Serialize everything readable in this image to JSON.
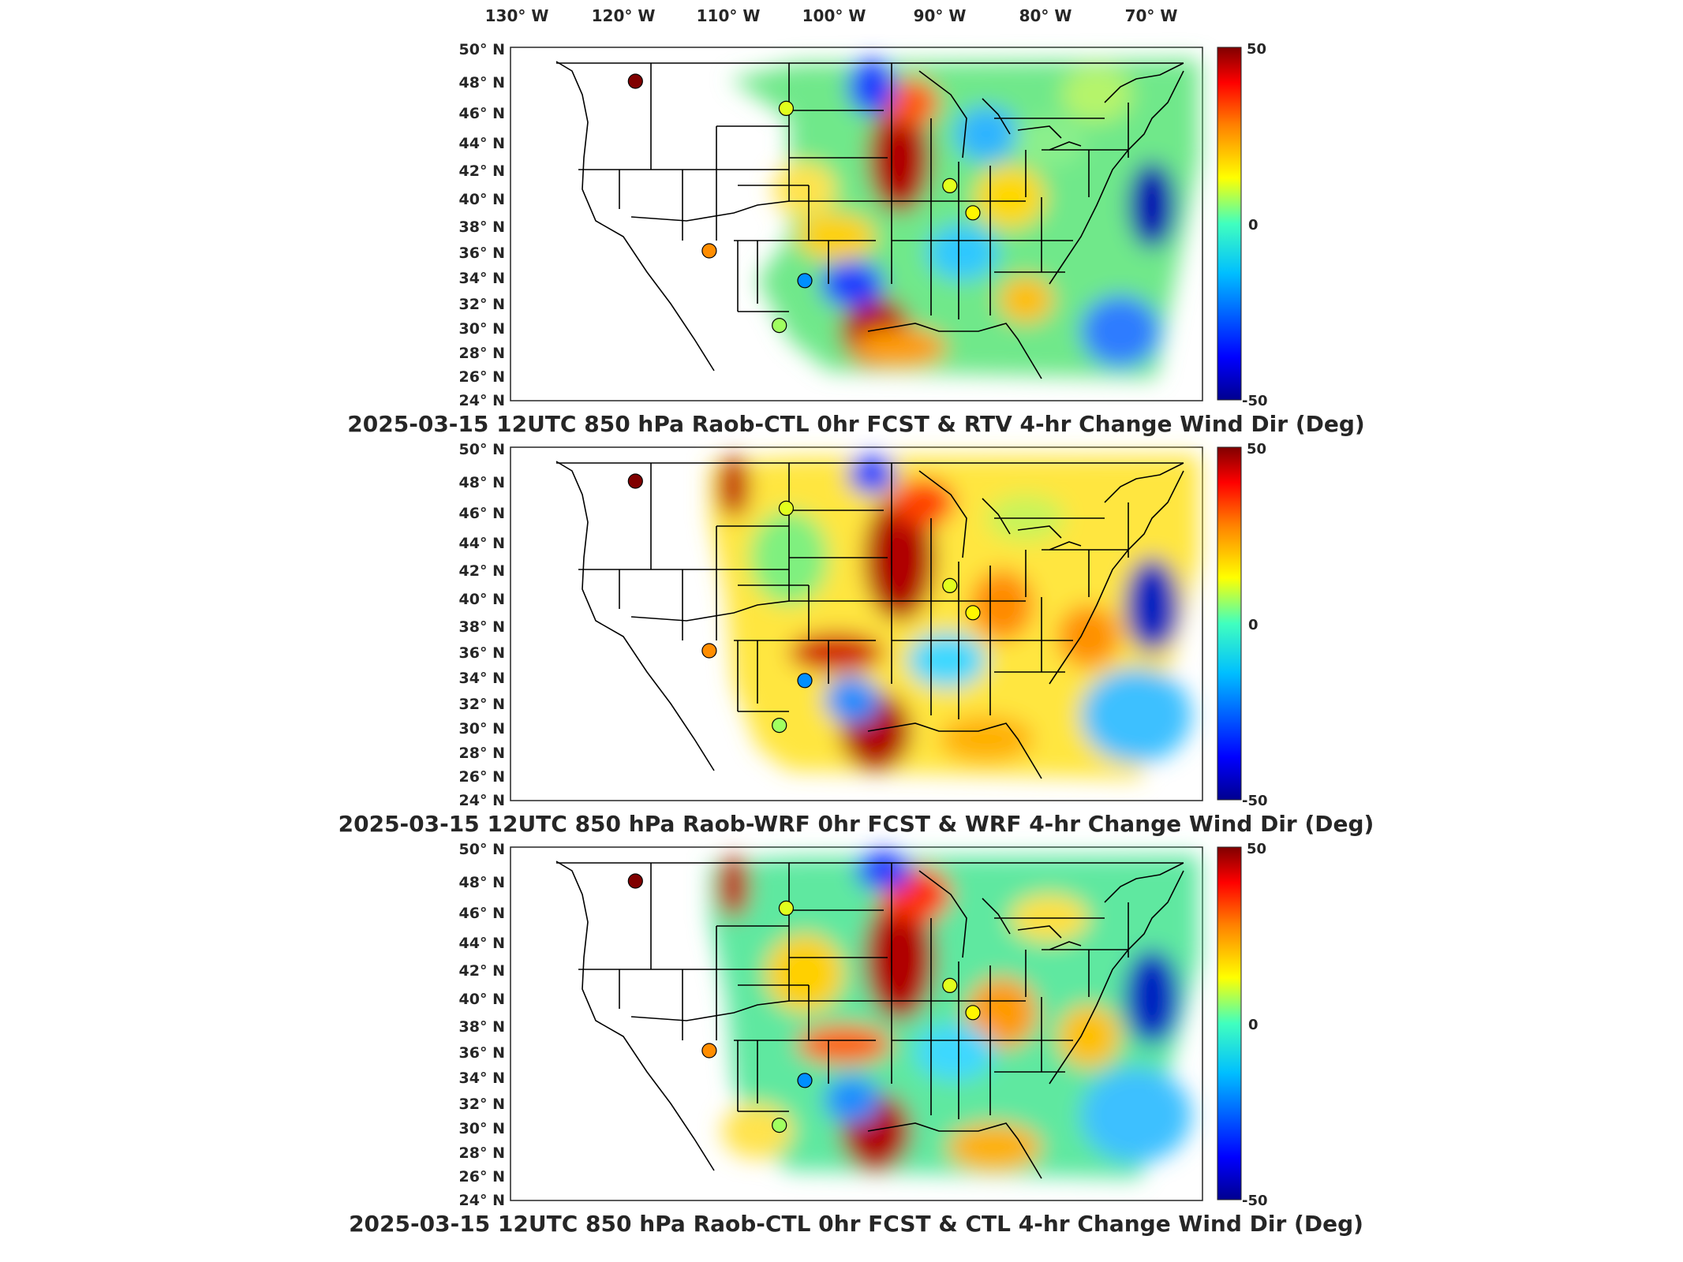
{
  "figure": {
    "longitude_labels": [
      "130° W",
      "120° W",
      "110° W",
      "100° W",
      "90° W",
      "80° W",
      "70° W"
    ],
    "latitude_labels": [
      "50° N",
      "48° N",
      "46° N",
      "44° N",
      "42° N",
      "40° N",
      "38° N",
      "36° N",
      "34° N",
      "32° N",
      "30° N",
      "28° N",
      "26° N",
      "24° N"
    ],
    "colorbar": {
      "ticks": [
        "50",
        "0",
        "-50"
      ],
      "range": [
        -50,
        50
      ],
      "colormap": "jet",
      "stops": [
        "#00008f",
        "#0000ff",
        "#00bfff",
        "#40ffbf",
        "#ffff00",
        "#ff8000",
        "#ff0000",
        "#800000"
      ]
    },
    "panels": [
      {
        "title": "2025-03-15 12UTC 850 hPa Raob-CTL 0hr FCST & RTV 4-hr Change Wind Dir (Deg)",
        "stations": [
          {
            "lon": -112.0,
            "lat": 47.5,
            "value": 50
          },
          {
            "lon": -106.6,
            "lat": 35.0,
            "value": 20
          },
          {
            "lon": -97.4,
            "lat": 32.8,
            "value": -25
          },
          {
            "lon": -99.0,
            "lat": 45.5,
            "value": 5
          },
          {
            "lon": -84.0,
            "lat": 39.8,
            "value": 5
          },
          {
            "lon": -81.6,
            "lat": 37.8,
            "value": 8
          },
          {
            "lon": -100.0,
            "lat": 29.5,
            "value": 0
          }
        ]
      },
      {
        "title": "2025-03-15 12UTC 850 hPa Raob-WRF 0hr FCST & WRF 4-hr Change Wind Dir (Deg)",
        "stations": [
          {
            "lon": -112.0,
            "lat": 47.5,
            "value": 50
          },
          {
            "lon": -106.6,
            "lat": 35.0,
            "value": 20
          },
          {
            "lon": -97.4,
            "lat": 32.8,
            "value": -25
          },
          {
            "lon": -99.0,
            "lat": 45.5,
            "value": 5
          },
          {
            "lon": -84.0,
            "lat": 39.8,
            "value": 5
          },
          {
            "lon": -81.6,
            "lat": 37.8,
            "value": 8
          },
          {
            "lon": -100.0,
            "lat": 29.5,
            "value": 0
          }
        ]
      },
      {
        "title": "2025-03-15 12UTC 850 hPa Raob-CTL 0hr FCST & CTL 4-hr Change Wind Dir (Deg)",
        "stations": [
          {
            "lon": -112.0,
            "lat": 47.5,
            "value": 50
          },
          {
            "lon": -106.6,
            "lat": 35.0,
            "value": 20
          },
          {
            "lon": -97.4,
            "lat": 32.8,
            "value": -25
          },
          {
            "lon": -99.0,
            "lat": 45.5,
            "value": 5
          },
          {
            "lon": -84.0,
            "lat": 39.8,
            "value": 5
          },
          {
            "lon": -81.6,
            "lat": 37.8,
            "value": 8
          },
          {
            "lon": -100.0,
            "lat": 29.5,
            "value": 0
          }
        ]
      }
    ]
  }
}
